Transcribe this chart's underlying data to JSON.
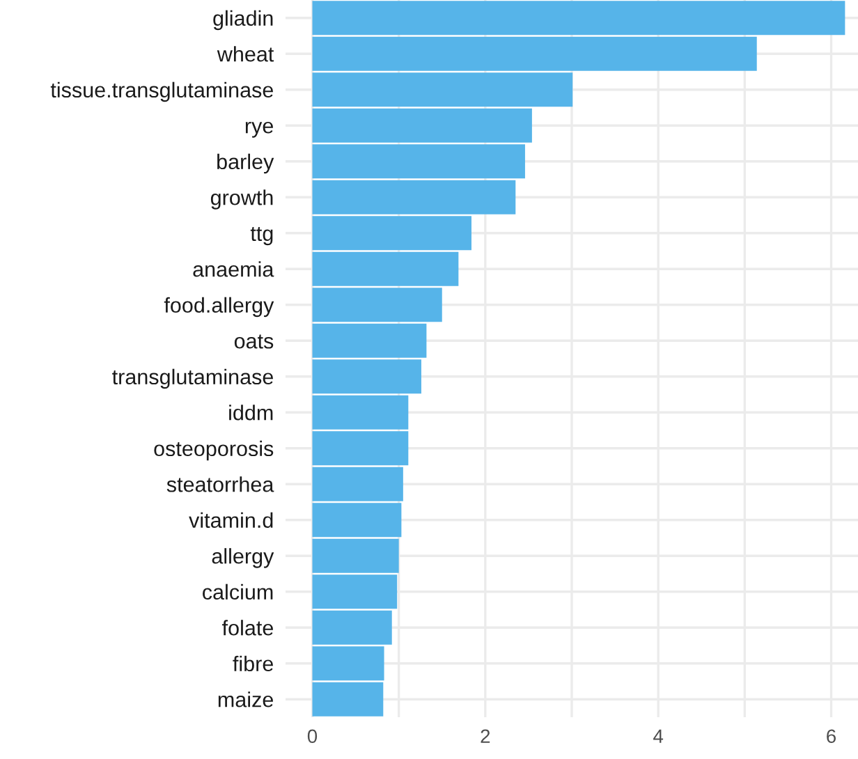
{
  "chart_data": {
    "type": "bar",
    "orientation": "horizontal",
    "color": "#56b4e9",
    "categories": [
      "gliadin",
      "wheat",
      "tissue.transglutaminase",
      "rye",
      "barley",
      "growth",
      "ttg",
      "anaemia",
      "food.allergy",
      "oats",
      "transglutaminase",
      "iddm",
      "osteoporosis",
      "steatorrhea",
      "vitamin.d",
      "allergy",
      "calcium",
      "folate",
      "fibre",
      "maize"
    ],
    "values": [
      6.16,
      5.14,
      3.01,
      2.54,
      2.46,
      2.35,
      1.84,
      1.69,
      1.5,
      1.32,
      1.26,
      1.11,
      1.11,
      1.05,
      1.03,
      1.0,
      0.98,
      0.92,
      0.83,
      0.82
    ],
    "xlim": [
      -0.31,
      6.31
    ],
    "xticks": [
      0,
      {
        "value": 1,
        "label": null
      },
      2,
      {
        "value": 3,
        "label": null
      },
      4,
      {
        "value": 5,
        "label": null
      },
      6
    ],
    "grid": true
  }
}
